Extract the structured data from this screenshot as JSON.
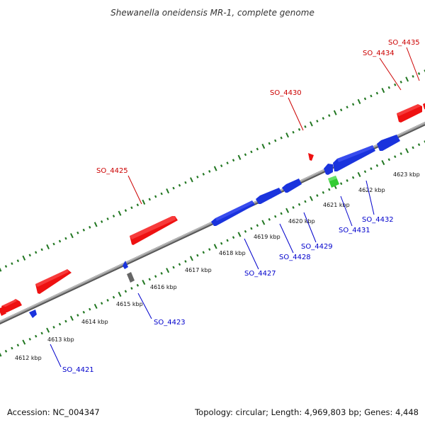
{
  "title": "Shewanella oneidensis MR-1, complete genome",
  "footer": {
    "accession": "Accession: NC_004347",
    "topology": "Topology: circular; Length: 4,969,803 bp; Genes: 4,448"
  },
  "colors": {
    "forward_gene": "#ee1111",
    "reverse_gene": "#1a33dd",
    "rna_gene": "#33cc33",
    "other_gene": "#666666",
    "ticks": "#227722",
    "backbone": "#888888",
    "forward_label": "#cc0000",
    "reverse_label": "#0000cc"
  },
  "scale": {
    "tick_labels": [
      {
        "kbp": 4612,
        "text": "4612 kbp"
      },
      {
        "kbp": 4613,
        "text": "4613 kbp"
      },
      {
        "kbp": 4614,
        "text": "4614 kbp"
      },
      {
        "kbp": 4615,
        "text": "4615 kbp"
      },
      {
        "kbp": 4616,
        "text": "4616 kbp"
      },
      {
        "kbp": 4617,
        "text": "4617 kbp"
      },
      {
        "kbp": 4618,
        "text": "4618 kbp"
      },
      {
        "kbp": 4619,
        "text": "4619 kbp"
      },
      {
        "kbp": 4620,
        "text": "4620 kbp"
      },
      {
        "kbp": 4621,
        "text": "4621 kbp"
      },
      {
        "kbp": 4622,
        "text": "4622 kbp"
      },
      {
        "kbp": 4623,
        "text": "4623 kbp"
      }
    ]
  },
  "labels": {
    "forward": [
      {
        "id": "SO_4425",
        "text": "SO_4425"
      },
      {
        "id": "SO_4430",
        "text": "SO_4430"
      },
      {
        "id": "SO_4434",
        "text": "SO_4434"
      },
      {
        "id": "SO_4435",
        "text": "SO_4435"
      }
    ],
    "reverse": [
      {
        "id": "SO_4421",
        "text": "SO_4421"
      },
      {
        "id": "SO_4423",
        "text": "SO_4423"
      },
      {
        "id": "SO_4427",
        "text": "SO_4427"
      },
      {
        "id": "SO_4428",
        "text": "SO_4428"
      },
      {
        "id": "SO_4429",
        "text": "SO_4429"
      },
      {
        "id": "SO_4431",
        "text": "SO_4431"
      },
      {
        "id": "SO_4432",
        "text": "SO_4432"
      }
    ]
  }
}
